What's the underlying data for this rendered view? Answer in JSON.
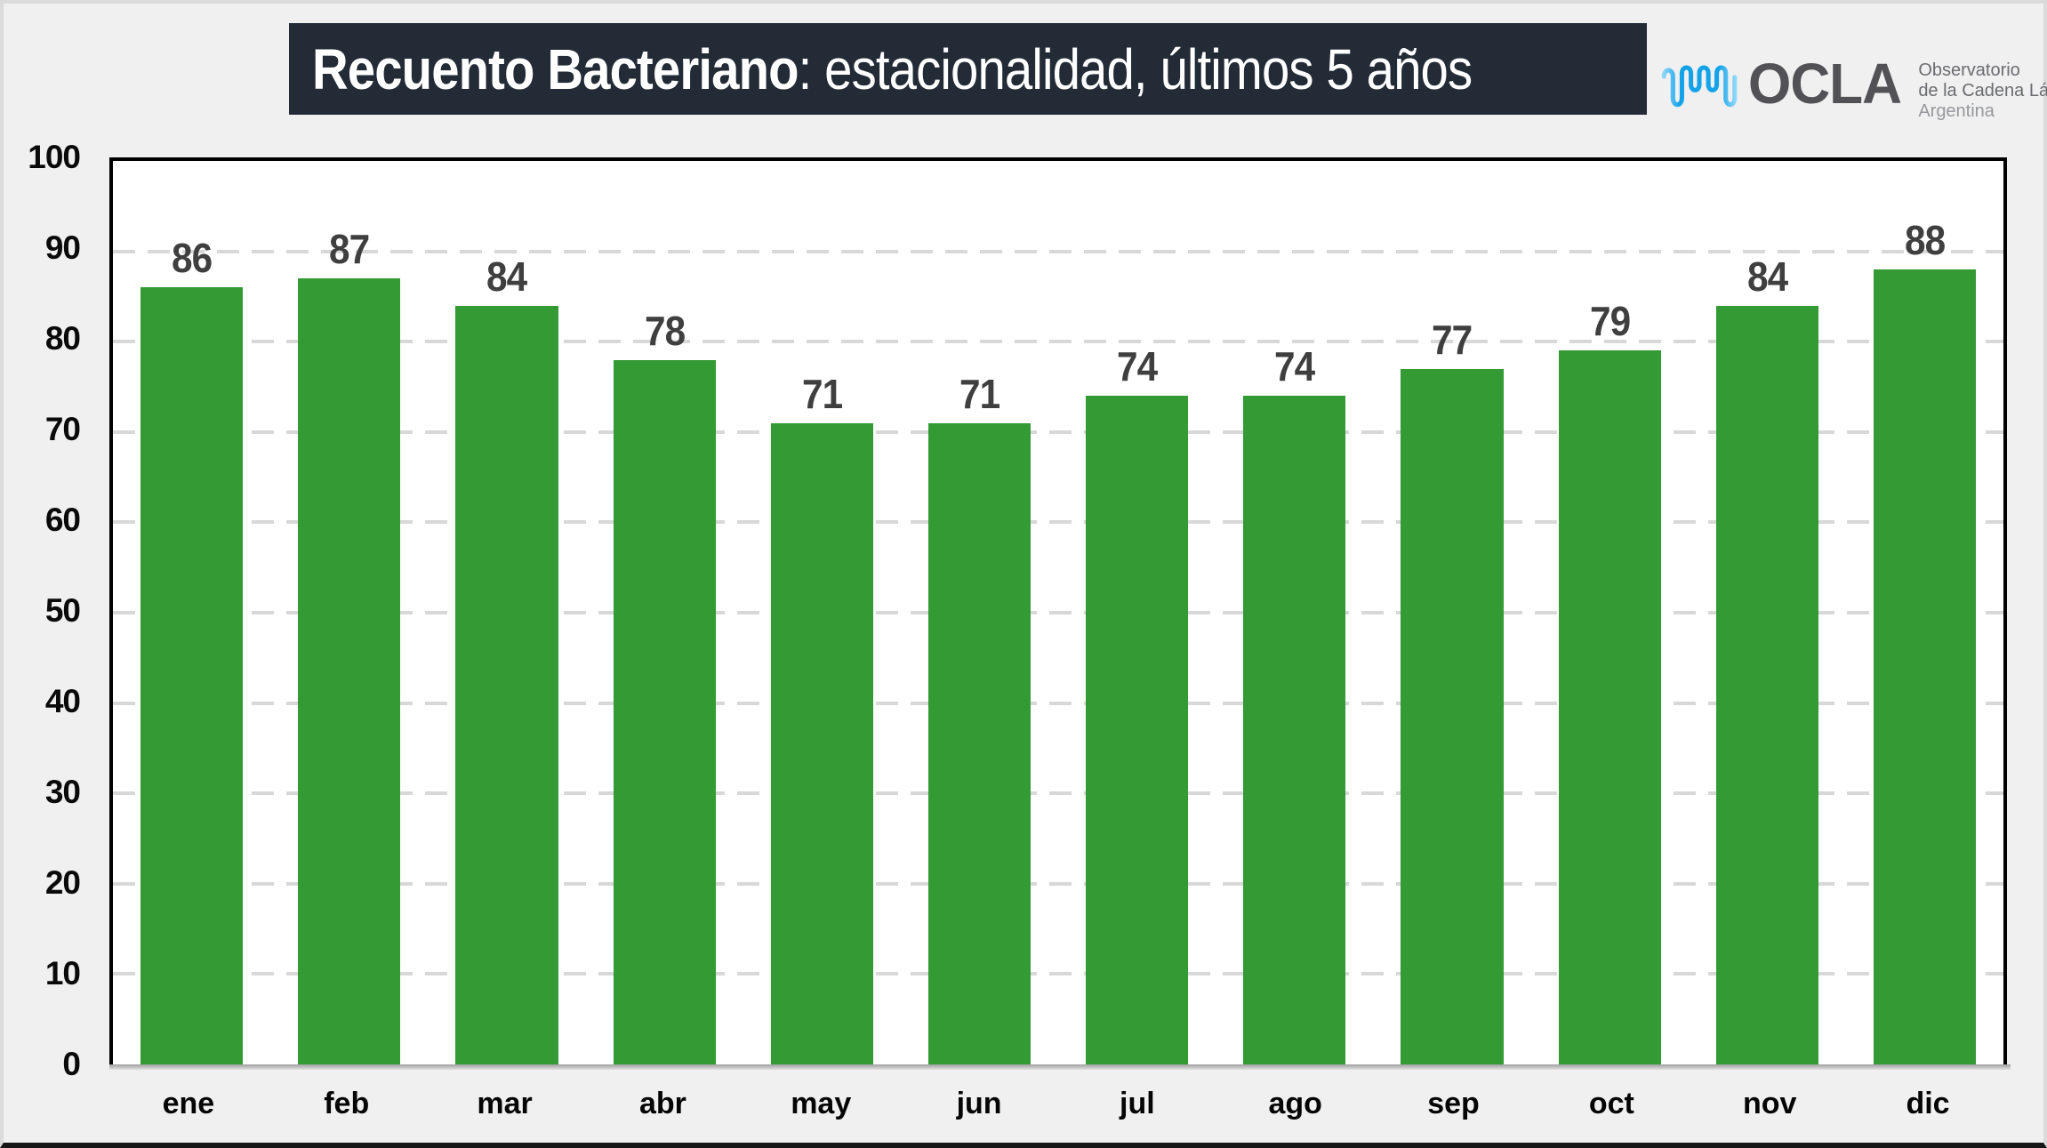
{
  "header": {
    "title_bold": "Recuento Bacteriano",
    "title_rest": ": estacionalidad, últimos 5 años",
    "title_bg": "#232B36",
    "title_color": "#FFFFFF",
    "logo": {
      "acronym": "OCLA",
      "org_line1": "Observatorio",
      "org_line2": "de la Cadena Láctea",
      "org_line3": "Argentina",
      "wave_color_light": "#9FDFFA",
      "wave_color_dark": "#14A3E8"
    }
  },
  "chart_data": {
    "type": "bar",
    "title": "Recuento Bacteriano: estacionalidad, últimos 5 años",
    "categories": [
      "ene",
      "feb",
      "mar",
      "abr",
      "may",
      "jun",
      "jul",
      "ago",
      "sep",
      "oct",
      "nov",
      "dic"
    ],
    "values": [
      86,
      87,
      84,
      78,
      71,
      71,
      74,
      74,
      77,
      79,
      84,
      88
    ],
    "xlabel": "",
    "ylabel": "",
    "ylim": [
      0,
      100
    ],
    "y_ticks": [
      0,
      10,
      20,
      30,
      40,
      50,
      60,
      70,
      80,
      90,
      100
    ],
    "grid": "horizontal-dashed",
    "gridline_color": "#D8D8D8",
    "bar_color": "#339A34",
    "value_label_color": "#3F3F3F",
    "axis_text_color": "#000000",
    "plot_border_color": "#000000",
    "plot_bg": "#FFFFFF",
    "page_bg": "#F0F0F0",
    "legend": null
  }
}
